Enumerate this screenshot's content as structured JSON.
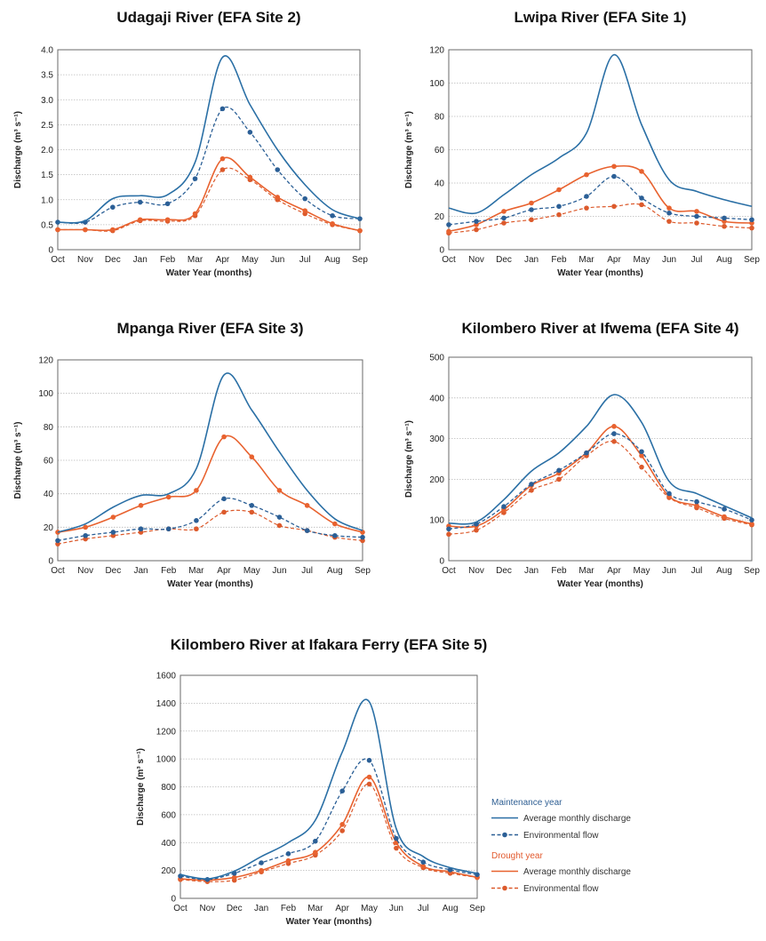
{
  "chart_data": [
    {
      "type": "line",
      "title": "Udagaji River (EFA Site 2)",
      "xlabel": "Water Year (months)",
      "ylabel": "Discharge (m³ s⁻¹)",
      "ylim": [
        0,
        4.0
      ],
      "yticks": [
        "0",
        "0.5",
        "1.0",
        "1.5",
        "2.0",
        "2.5",
        "3.0",
        "3.5",
        "4.0"
      ],
      "grid": true,
      "categories": [
        "Oct",
        "Nov",
        "Dec",
        "Jan",
        "Feb",
        "Mar",
        "Apr",
        "May",
        "Jun",
        "Jul",
        "Aug",
        "Sep"
      ],
      "series": [
        {
          "name": "Maintenance year – Average monthly discharge",
          "values": [
            0.55,
            0.58,
            1.02,
            1.08,
            1.1,
            1.75,
            3.85,
            2.9,
            2.0,
            1.3,
            0.8,
            0.62
          ]
        },
        {
          "name": "Maintenance year – Environmental flow",
          "values": [
            0.55,
            0.55,
            0.85,
            0.95,
            0.92,
            1.42,
            2.82,
            2.35,
            1.6,
            1.02,
            0.68,
            0.62
          ]
        },
        {
          "name": "Drought year – Average monthly discharge",
          "values": [
            0.4,
            0.4,
            0.4,
            0.6,
            0.6,
            0.72,
            1.82,
            1.45,
            1.05,
            0.78,
            0.52,
            0.38
          ]
        },
        {
          "name": "Drought year – Environmental flow",
          "values": [
            0.4,
            0.4,
            0.38,
            0.58,
            0.57,
            0.68,
            1.6,
            1.4,
            1.0,
            0.72,
            0.5,
            0.38
          ]
        }
      ]
    },
    {
      "type": "line",
      "title": "Lwipa River (EFA Site 1)",
      "xlabel": "Water Year (months)",
      "ylabel": "Discharge (m³ s⁻¹)",
      "ylim": [
        0,
        120
      ],
      "yticks": [
        "0",
        "20",
        "40",
        "60",
        "80",
        "100",
        "120"
      ],
      "grid": true,
      "categories": [
        "Oct",
        "Nov",
        "Dec",
        "Jan",
        "Feb",
        "Mar",
        "Apr",
        "May",
        "Jun",
        "Jul",
        "Aug",
        "Sep"
      ],
      "series": [
        {
          "name": "Maintenance year – Average monthly discharge",
          "values": [
            25,
            22,
            33,
            45,
            55,
            70,
            117,
            75,
            42,
            35,
            30,
            26
          ]
        },
        {
          "name": "Maintenance year – Environmental flow",
          "values": [
            15,
            17,
            19,
            24,
            26,
            32,
            44,
            31,
            22,
            20,
            19,
            18
          ]
        },
        {
          "name": "Drought year – Average monthly discharge",
          "values": [
            11,
            15,
            23,
            28,
            36,
            45,
            50,
            47,
            25,
            23,
            17,
            16
          ]
        },
        {
          "name": "Drought year – Environmental flow",
          "values": [
            10,
            12,
            16,
            18,
            21,
            25,
            26,
            27,
            17,
            16,
            14,
            13
          ]
        }
      ]
    },
    {
      "type": "line",
      "title": "Mpanga River (EFA Site 3)",
      "xlabel": "Water Year (months)",
      "ylabel": "Discharge (m³ s⁻¹)",
      "ylim": [
        0,
        120
      ],
      "yticks": [
        "0",
        "20",
        "40",
        "60",
        "80",
        "100",
        "120"
      ],
      "grid": true,
      "categories": [
        "Oct",
        "Nov",
        "Dec",
        "Jan",
        "Feb",
        "Mar",
        "Apr",
        "May",
        "Jun",
        "Jul",
        "Aug",
        "Sep"
      ],
      "series": [
        {
          "name": "Maintenance year – Average monthly discharge",
          "values": [
            17,
            22,
            32,
            39,
            40,
            55,
            111,
            90,
            65,
            42,
            25,
            18
          ]
        },
        {
          "name": "Maintenance year – Environmental flow",
          "values": [
            12,
            15,
            17,
            19,
            19,
            24,
            37,
            33,
            26,
            18,
            15,
            14
          ]
        },
        {
          "name": "Drought year – Average monthly discharge",
          "values": [
            17,
            20,
            26,
            33,
            38,
            42,
            74,
            62,
            42,
            33,
            22,
            17
          ]
        },
        {
          "name": "Drought year – Environmental flow",
          "values": [
            10,
            13,
            15,
            17,
            19,
            19,
            29,
            29,
            21,
            18,
            14,
            12
          ]
        }
      ]
    },
    {
      "type": "line",
      "title": "Kilombero River at Ifwema (EFA Site 4)",
      "xlabel": "Water Year (months)",
      "ylabel": "Discharge (m³ s⁻¹)",
      "ylim": [
        0,
        500
      ],
      "yticks": [
        "0",
        "100",
        "200",
        "300",
        "400",
        "500"
      ],
      "grid": true,
      "categories": [
        "Oct",
        "Nov",
        "Dec",
        "Jan",
        "Feb",
        "Mar",
        "Apr",
        "May",
        "Jun",
        "Jul",
        "Aug",
        "Sep"
      ],
      "series": [
        {
          "name": "Maintenance year – Average monthly discharge",
          "values": [
            92,
            95,
            150,
            220,
            265,
            330,
            408,
            340,
            195,
            165,
            135,
            105
          ]
        },
        {
          "name": "Maintenance year – Environmental flow",
          "values": [
            78,
            90,
            133,
            188,
            222,
            265,
            312,
            268,
            165,
            145,
            127,
            100
          ]
        },
        {
          "name": "Drought year – Average monthly discharge",
          "values": [
            85,
            85,
            125,
            185,
            215,
            265,
            330,
            258,
            158,
            135,
            108,
            90
          ]
        },
        {
          "name": "Drought year – Environmental flow",
          "values": [
            65,
            75,
            118,
            173,
            200,
            258,
            293,
            230,
            155,
            130,
            104,
            88
          ]
        }
      ]
    },
    {
      "type": "line",
      "title": "Kilombero River at Ifakara Ferry (EFA Site 5)",
      "xlabel": "Water Year (months)",
      "ylabel": "Discharge (m³ s⁻¹)",
      "ylim": [
        0,
        1600
      ],
      "yticks": [
        "0",
        "200",
        "400",
        "600",
        "800",
        "1000",
        "1200",
        "1400",
        "1600"
      ],
      "grid": true,
      "categories": [
        "Oct",
        "Nov",
        "Dec",
        "Jan",
        "Feb",
        "Mar",
        "Apr",
        "May",
        "Jun",
        "Jul",
        "Aug",
        "Sep"
      ],
      "series": [
        {
          "name": "Maintenance year – Average monthly discharge",
          "values": [
            170,
            140,
            195,
            300,
            400,
            560,
            1050,
            1410,
            500,
            300,
            220,
            180
          ]
        },
        {
          "name": "Maintenance year – Environmental flow",
          "values": [
            160,
            135,
            180,
            255,
            320,
            410,
            770,
            990,
            430,
            260,
            205,
            170
          ]
        },
        {
          "name": "Drought year – Average monthly discharge",
          "values": [
            140,
            130,
            150,
            200,
            270,
            330,
            530,
            870,
            400,
            230,
            190,
            150
          ]
        },
        {
          "name": "Drought year – Environmental flow",
          "values": [
            135,
            120,
            130,
            190,
            250,
            310,
            485,
            820,
            360,
            220,
            180,
            150
          ]
        }
      ]
    }
  ],
  "legend": {
    "groups": [
      {
        "heading": "Maintenance year",
        "color": "#2f5f93",
        "items": [
          {
            "label": "Average monthly discharge",
            "style": "solid"
          },
          {
            "label": "Environmental flow",
            "style": "dashed-dots"
          }
        ]
      },
      {
        "heading": "Drought year",
        "color": "#e25a2e",
        "items": [
          {
            "label": "Average monthly discharge",
            "style": "solid"
          },
          {
            "label": "Environmental flow",
            "style": "dashed-dots"
          }
        ]
      }
    ]
  },
  "colors": {
    "maintenance_avg": "#2a6fa5",
    "maintenance_env": "#2b5f96",
    "drought_avg": "#e8622f",
    "drought_env": "#dc5a2c"
  }
}
